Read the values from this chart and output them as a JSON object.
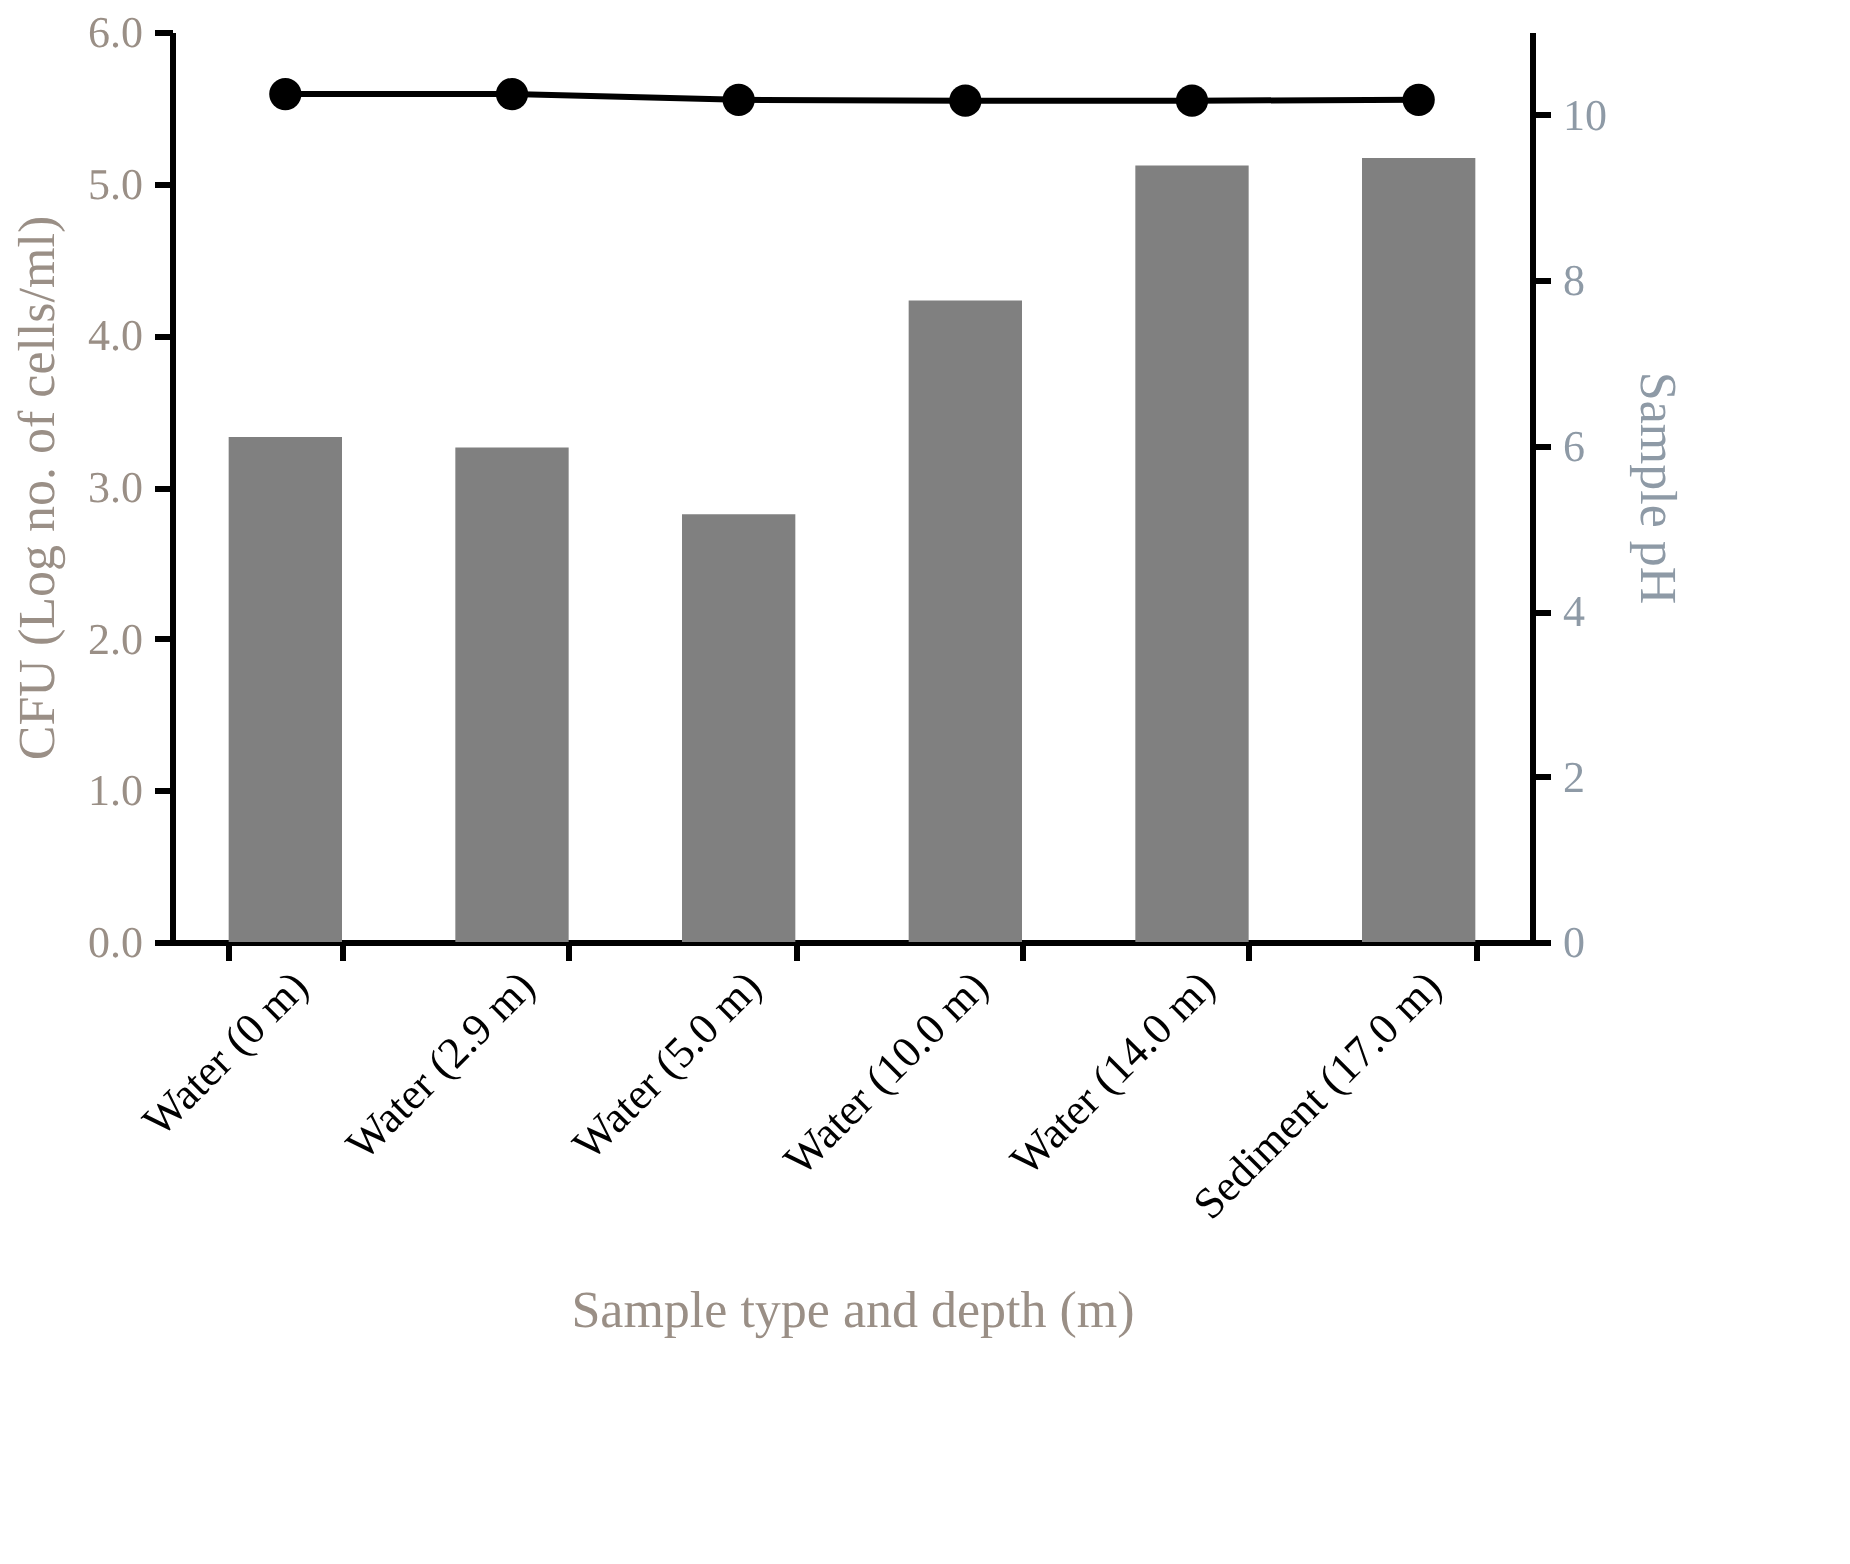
{
  "chart_data": {
    "type": "bar",
    "xlabel": "Sample type and depth (m)",
    "ylabel": "CFU (Log no. of cells/ml)",
    "y2label": "Sample pH",
    "categories": [
      "Water (0 m)",
      "Water (2.9 m)",
      "Water (5.0 m)",
      "Water (10.0  m)",
      "Water (14.0 m)",
      "Sediment (17.0  m)"
    ],
    "series": [
      {
        "color": "#808080",
        "values": [
          3.33,
          3.26,
          2.82,
          4.23,
          5.12,
          5.17
        ]
      },
      {
        "type": "line",
        "axis": "y2",
        "color": "#000000",
        "values": [
          10.25,
          10.25,
          10.18,
          10.17,
          10.17,
          10.18
        ]
      }
    ],
    "ylim": [
      0,
      6
    ],
    "yticks": [
      {
        "value": 0,
        "label": "0.0"
      },
      {
        "value": 1,
        "label": "1.0"
      },
      {
        "value": 2,
        "label": "2.0"
      },
      {
        "value": 3,
        "label": "3.0"
      },
      {
        "value": 4,
        "label": "4.0"
      },
      {
        "value": 5,
        "label": "5.0"
      },
      {
        "value": 6,
        "label": "6.0"
      }
    ],
    "y2lim": [
      0,
      11
    ],
    "y2ticks": [
      0,
      2,
      4,
      6,
      8,
      10
    ],
    "marker": "circle",
    "line_style": "solid",
    "grid": false
  }
}
